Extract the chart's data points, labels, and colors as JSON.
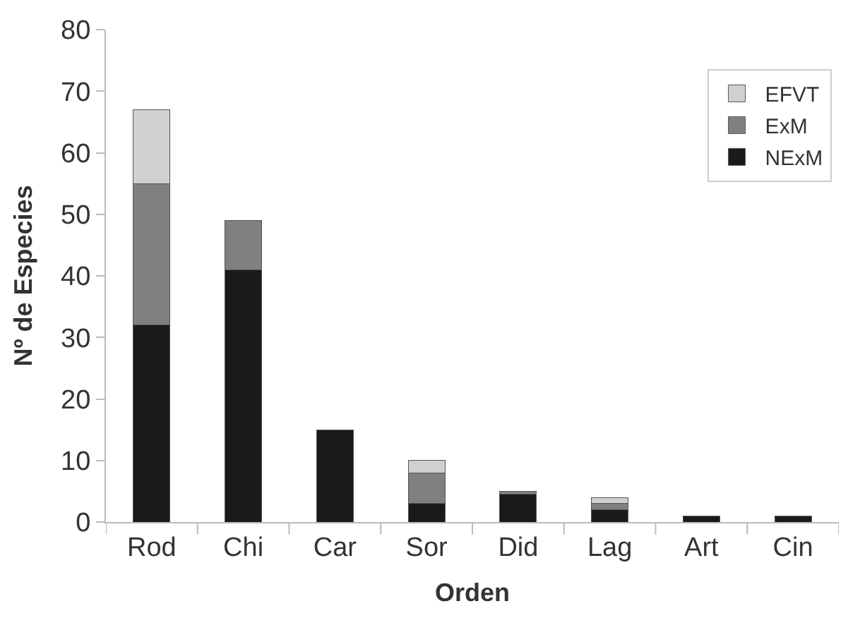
{
  "chart_data": {
    "type": "bar",
    "stacked": true,
    "xlabel": "Orden",
    "ylabel": "Nº de Especies",
    "categories": [
      "Rod",
      "Chi",
      "Car",
      "Sor",
      "Did",
      "Lag",
      "Art",
      "Cin"
    ],
    "series": [
      {
        "name": "NExM",
        "color": "#1a1a1a",
        "values": [
          32,
          41,
          15,
          3,
          4.5,
          2,
          1,
          1
        ]
      },
      {
        "name": "ExM",
        "color": "#808080",
        "values": [
          23,
          8,
          null,
          5,
          0.5,
          1,
          null,
          null
        ]
      },
      {
        "name": "EFVT",
        "color": "#d0d0d0",
        "values": [
          12,
          null,
          null,
          2,
          null,
          1,
          null,
          null
        ]
      }
    ],
    "ylim": [
      0,
      80
    ],
    "yticks": [
      0,
      10,
      20,
      30,
      40,
      50,
      60,
      70,
      80
    ],
    "legend": "top right"
  }
}
